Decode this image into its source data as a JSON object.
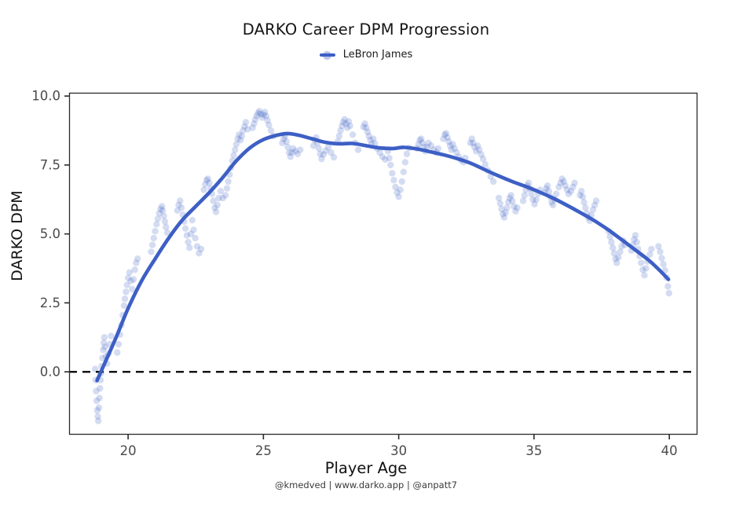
{
  "title": "DARKO Career DPM Progression",
  "legend": {
    "label": "LeBron James"
  },
  "footer": "@kmedved | www.darko.app | @anpatt7",
  "colors": {
    "line_blue": "#3d5fc5",
    "point_blue": "#3d5fc5",
    "zero_line": "#0c0c0c",
    "spine": "#2a2a2a",
    "tick_label": "#4a4a4a"
  },
  "chart_data": {
    "type": "scatter",
    "title": "DARKO Career DPM Progression",
    "xlabel": "Player Age",
    "ylabel": "DARKO DPM",
    "legend_entries": [
      "LeBron James"
    ],
    "grid": false,
    "legend_position": "top-center",
    "xlim": [
      17.82,
      41.04
    ],
    "ylim": [
      -2.28,
      10.12
    ],
    "x_ticks": [
      20,
      25,
      30,
      35,
      40
    ],
    "y_ticks": [
      0.0,
      2.5,
      5.0,
      7.5,
      10.0
    ],
    "zero_reference_line": 0.0,
    "trend_line": [
      [
        18.85,
        -0.32
      ],
      [
        19.2,
        0.45
      ],
      [
        19.6,
        1.35
      ],
      [
        20.0,
        2.3
      ],
      [
        20.5,
        3.3
      ],
      [
        21.0,
        4.1
      ],
      [
        21.5,
        4.85
      ],
      [
        22.0,
        5.5
      ],
      [
        22.5,
        6.0
      ],
      [
        23.0,
        6.5
      ],
      [
        23.5,
        7.05
      ],
      [
        24.0,
        7.65
      ],
      [
        24.5,
        8.12
      ],
      [
        25.0,
        8.42
      ],
      [
        25.5,
        8.58
      ],
      [
        25.9,
        8.64
      ],
      [
        26.3,
        8.58
      ],
      [
        26.8,
        8.45
      ],
      [
        27.3,
        8.32
      ],
      [
        27.8,
        8.27
      ],
      [
        28.3,
        8.28
      ],
      [
        28.8,
        8.2
      ],
      [
        29.3,
        8.12
      ],
      [
        29.8,
        8.1
      ],
      [
        30.2,
        8.14
      ],
      [
        30.7,
        8.08
      ],
      [
        31.2,
        7.97
      ],
      [
        31.7,
        7.86
      ],
      [
        32.2,
        7.72
      ],
      [
        32.7,
        7.55
      ],
      [
        33.2,
        7.32
      ],
      [
        33.7,
        7.1
      ],
      [
        34.2,
        6.9
      ],
      [
        34.7,
        6.72
      ],
      [
        35.2,
        6.52
      ],
      [
        35.7,
        6.3
      ],
      [
        36.2,
        6.05
      ],
      [
        36.7,
        5.78
      ],
      [
        37.2,
        5.5
      ],
      [
        37.7,
        5.18
      ],
      [
        38.2,
        4.82
      ],
      [
        38.7,
        4.45
      ],
      [
        39.2,
        4.08
      ],
      [
        39.6,
        3.72
      ],
      [
        39.97,
        3.35
      ]
    ],
    "points": [
      [
        18.78,
        0.1
      ],
      [
        18.8,
        -0.3
      ],
      [
        18.82,
        -0.7
      ],
      [
        18.84,
        -1.05
      ],
      [
        18.86,
        -1.4
      ],
      [
        18.88,
        -1.62
      ],
      [
        18.9,
        -1.78
      ],
      [
        18.92,
        -1.3
      ],
      [
        18.94,
        -0.95
      ],
      [
        18.96,
        -0.6
      ],
      [
        18.98,
        -0.3
      ],
      [
        19.0,
        -0.05
      ],
      [
        19.02,
        0.2
      ],
      [
        19.05,
        0.5
      ],
      [
        19.08,
        0.8
      ],
      [
        19.1,
        1.05
      ],
      [
        19.12,
        1.25
      ],
      [
        19.15,
        0.9
      ],
      [
        19.18,
        0.55
      ],
      [
        19.22,
        0.3
      ],
      [
        19.27,
        0.65
      ],
      [
        19.32,
        1.0
      ],
      [
        19.37,
        1.3
      ],
      [
        19.6,
        0.7
      ],
      [
        19.65,
        1.0
      ],
      [
        19.7,
        1.35
      ],
      [
        19.75,
        1.7
      ],
      [
        19.8,
        2.05
      ],
      [
        19.85,
        2.4
      ],
      [
        19.88,
        2.65
      ],
      [
        19.92,
        2.9
      ],
      [
        19.96,
        3.15
      ],
      [
        20.0,
        3.4
      ],
      [
        20.05,
        3.6
      ],
      [
        20.1,
        3.3
      ],
      [
        20.15,
        3.0
      ],
      [
        20.2,
        3.35
      ],
      [
        20.25,
        3.7
      ],
      [
        20.3,
        3.95
      ],
      [
        20.35,
        4.1
      ],
      [
        20.85,
        4.35
      ],
      [
        20.9,
        4.6
      ],
      [
        20.95,
        4.85
      ],
      [
        21.0,
        5.1
      ],
      [
        21.05,
        5.35
      ],
      [
        21.1,
        5.55
      ],
      [
        21.15,
        5.75
      ],
      [
        21.2,
        5.9
      ],
      [
        21.25,
        6.0
      ],
      [
        21.28,
        5.85
      ],
      [
        21.32,
        5.65
      ],
      [
        21.36,
        5.45
      ],
      [
        21.4,
        5.25
      ],
      [
        21.45,
        5.05
      ],
      [
        21.82,
        5.85
      ],
      [
        21.87,
        6.05
      ],
      [
        21.92,
        6.2
      ],
      [
        21.97,
        5.95
      ],
      [
        22.02,
        5.7
      ],
      [
        22.07,
        5.45
      ],
      [
        22.12,
        5.2
      ],
      [
        22.17,
        4.95
      ],
      [
        22.22,
        4.7
      ],
      [
        22.27,
        4.5
      ],
      [
        22.32,
        5.0
      ],
      [
        22.37,
        5.5
      ],
      [
        22.42,
        5.15
      ],
      [
        22.48,
        4.85
      ],
      [
        22.55,
        4.55
      ],
      [
        22.62,
        4.3
      ],
      [
        22.7,
        4.45
      ],
      [
        22.8,
        6.6
      ],
      [
        22.85,
        6.8
      ],
      [
        22.9,
        6.95
      ],
      [
        22.95,
        7.0
      ],
      [
        23.0,
        6.85
      ],
      [
        23.05,
        6.65
      ],
      [
        23.1,
        6.45
      ],
      [
        23.15,
        6.2
      ],
      [
        23.2,
        5.95
      ],
      [
        23.25,
        5.8
      ],
      [
        23.3,
        6.05
      ],
      [
        23.35,
        6.3
      ],
      [
        23.42,
        6.55
      ],
      [
        23.5,
        6.3
      ],
      [
        23.6,
        6.4
      ],
      [
        23.65,
        6.65
      ],
      [
        23.7,
        6.9
      ],
      [
        23.75,
        7.15
      ],
      [
        23.8,
        7.4
      ],
      [
        23.85,
        7.65
      ],
      [
        23.9,
        7.85
      ],
      [
        23.95,
        8.05
      ],
      [
        24.0,
        8.25
      ],
      [
        24.05,
        8.45
      ],
      [
        24.1,
        8.6
      ],
      [
        24.15,
        8.4
      ],
      [
        24.2,
        8.55
      ],
      [
        24.25,
        8.75
      ],
      [
        24.3,
        8.9
      ],
      [
        24.35,
        9.05
      ],
      [
        24.42,
        8.8
      ],
      [
        24.6,
        8.85
      ],
      [
        24.65,
        9.0
      ],
      [
        24.7,
        9.15
      ],
      [
        24.75,
        9.28
      ],
      [
        24.8,
        9.38
      ],
      [
        24.85,
        9.45
      ],
      [
        24.9,
        9.35
      ],
      [
        24.95,
        9.22
      ],
      [
        25.0,
        9.32
      ],
      [
        25.05,
        9.42
      ],
      [
        25.1,
        9.28
      ],
      [
        25.15,
        9.12
      ],
      [
        25.2,
        8.95
      ],
      [
        25.28,
        8.75
      ],
      [
        25.36,
        8.55
      ],
      [
        25.7,
        8.3
      ],
      [
        25.75,
        8.45
      ],
      [
        25.8,
        8.55
      ],
      [
        25.85,
        8.35
      ],
      [
        25.9,
        8.15
      ],
      [
        25.95,
        7.95
      ],
      [
        26.0,
        7.8
      ],
      [
        26.05,
        7.95
      ],
      [
        26.1,
        8.1
      ],
      [
        26.18,
        8.0
      ],
      [
        26.27,
        7.9
      ],
      [
        26.36,
        8.05
      ],
      [
        26.85,
        8.2
      ],
      [
        26.9,
        8.4
      ],
      [
        26.95,
        8.5
      ],
      [
        27.0,
        8.3
      ],
      [
        27.05,
        8.1
      ],
      [
        27.1,
        7.9
      ],
      [
        27.15,
        7.72
      ],
      [
        27.22,
        7.88
      ],
      [
        27.3,
        8.02
      ],
      [
        27.4,
        8.15
      ],
      [
        27.5,
        7.95
      ],
      [
        27.6,
        7.78
      ],
      [
        27.75,
        8.35
      ],
      [
        27.8,
        8.55
      ],
      [
        27.85,
        8.75
      ],
      [
        27.9,
        8.92
      ],
      [
        27.95,
        9.05
      ],
      [
        28.0,
        9.15
      ],
      [
        28.05,
        9.0
      ],
      [
        28.1,
        8.85
      ],
      [
        28.15,
        9.08
      ],
      [
        28.2,
        8.92
      ],
      [
        28.3,
        8.6
      ],
      [
        28.4,
        8.3
      ],
      [
        28.5,
        8.05
      ],
      [
        28.7,
        8.88
      ],
      [
        28.75,
        9.0
      ],
      [
        28.8,
        8.85
      ],
      [
        28.85,
        8.7
      ],
      [
        28.9,
        8.55
      ],
      [
        28.95,
        8.4
      ],
      [
        29.0,
        8.25
      ],
      [
        29.06,
        8.45
      ],
      [
        29.12,
        8.28
      ],
      [
        29.2,
        8.1
      ],
      [
        29.3,
        7.95
      ],
      [
        29.4,
        7.8
      ],
      [
        29.5,
        7.7
      ],
      [
        29.6,
        8.0
      ],
      [
        29.65,
        7.75
      ],
      [
        29.7,
        7.5
      ],
      [
        29.76,
        7.2
      ],
      [
        29.82,
        6.95
      ],
      [
        29.88,
        6.7
      ],
      [
        29.94,
        6.5
      ],
      [
        30.0,
        6.35
      ],
      [
        30.06,
        6.6
      ],
      [
        30.12,
        6.9
      ],
      [
        30.18,
        7.25
      ],
      [
        30.24,
        7.6
      ],
      [
        30.3,
        7.9
      ],
      [
        30.38,
        8.12
      ],
      [
        30.68,
        8.1
      ],
      [
        30.73,
        8.25
      ],
      [
        30.78,
        8.4
      ],
      [
        30.83,
        8.45
      ],
      [
        30.88,
        8.3
      ],
      [
        30.93,
        8.15
      ],
      [
        30.98,
        8.0
      ],
      [
        31.04,
        8.15
      ],
      [
        31.1,
        8.3
      ],
      [
        31.2,
        8.2
      ],
      [
        31.3,
        8.05
      ],
      [
        31.4,
        7.95
      ],
      [
        31.46,
        8.1
      ],
      [
        31.65,
        8.45
      ],
      [
        31.7,
        8.6
      ],
      [
        31.75,
        8.65
      ],
      [
        31.8,
        8.5
      ],
      [
        31.85,
        8.35
      ],
      [
        31.9,
        8.2
      ],
      [
        31.95,
        8.05
      ],
      [
        32.0,
        8.25
      ],
      [
        32.06,
        8.1
      ],
      [
        32.14,
        7.95
      ],
      [
        32.22,
        7.8
      ],
      [
        32.3,
        7.68
      ],
      [
        32.4,
        7.6
      ],
      [
        32.46,
        7.75
      ],
      [
        32.65,
        8.3
      ],
      [
        32.7,
        8.45
      ],
      [
        32.75,
        8.3
      ],
      [
        32.8,
        8.15
      ],
      [
        32.86,
        8.0
      ],
      [
        32.92,
        8.2
      ],
      [
        32.98,
        8.05
      ],
      [
        33.05,
        7.88
      ],
      [
        33.12,
        7.72
      ],
      [
        33.2,
        7.52
      ],
      [
        33.3,
        7.3
      ],
      [
        33.4,
        7.08
      ],
      [
        33.5,
        6.9
      ],
      [
        33.7,
        6.3
      ],
      [
        33.75,
        6.1
      ],
      [
        33.8,
        5.9
      ],
      [
        33.85,
        5.72
      ],
      [
        33.9,
        5.6
      ],
      [
        33.95,
        5.78
      ],
      [
        34.0,
        5.95
      ],
      [
        34.05,
        6.15
      ],
      [
        34.1,
        6.3
      ],
      [
        34.15,
        6.4
      ],
      [
        34.2,
        6.2
      ],
      [
        34.26,
        6.0
      ],
      [
        34.32,
        5.82
      ],
      [
        34.38,
        5.95
      ],
      [
        34.6,
        6.2
      ],
      [
        34.65,
        6.4
      ],
      [
        34.7,
        6.6
      ],
      [
        34.75,
        6.75
      ],
      [
        34.8,
        6.85
      ],
      [
        34.85,
        6.65
      ],
      [
        34.9,
        6.45
      ],
      [
        34.96,
        6.25
      ],
      [
        35.02,
        6.08
      ],
      [
        35.08,
        6.25
      ],
      [
        35.15,
        6.45
      ],
      [
        35.22,
        6.6
      ],
      [
        35.4,
        6.5
      ],
      [
        35.45,
        6.65
      ],
      [
        35.5,
        6.75
      ],
      [
        35.55,
        6.55
      ],
      [
        35.6,
        6.35
      ],
      [
        35.65,
        6.15
      ],
      [
        35.7,
        6.05
      ],
      [
        35.76,
        6.25
      ],
      [
        35.82,
        6.45
      ],
      [
        35.92,
        6.7
      ],
      [
        35.98,
        6.85
      ],
      [
        36.04,
        7.0
      ],
      [
        36.1,
        6.9
      ],
      [
        36.16,
        6.75
      ],
      [
        36.22,
        6.6
      ],
      [
        36.28,
        6.45
      ],
      [
        36.36,
        6.55
      ],
      [
        36.44,
        6.7
      ],
      [
        36.5,
        6.85
      ],
      [
        36.7,
        6.4
      ],
      [
        36.75,
        6.55
      ],
      [
        36.8,
        6.35
      ],
      [
        36.85,
        6.15
      ],
      [
        36.9,
        5.95
      ],
      [
        36.95,
        5.75
      ],
      [
        37.0,
        5.6
      ],
      [
        37.06,
        5.48
      ],
      [
        37.12,
        5.68
      ],
      [
        37.18,
        5.88
      ],
      [
        37.24,
        6.05
      ],
      [
        37.3,
        6.2
      ],
      [
        37.76,
        5.1
      ],
      [
        37.81,
        4.9
      ],
      [
        37.86,
        4.7
      ],
      [
        37.91,
        4.5
      ],
      [
        37.96,
        4.3
      ],
      [
        38.01,
        4.1
      ],
      [
        38.06,
        3.95
      ],
      [
        38.12,
        4.15
      ],
      [
        38.18,
        4.35
      ],
      [
        38.24,
        4.55
      ],
      [
        38.3,
        4.75
      ],
      [
        38.36,
        4.6
      ],
      [
        38.6,
        4.4
      ],
      [
        38.65,
        4.6
      ],
      [
        38.7,
        4.8
      ],
      [
        38.75,
        4.95
      ],
      [
        38.8,
        4.7
      ],
      [
        38.85,
        4.45
      ],
      [
        38.9,
        4.2
      ],
      [
        38.96,
        3.95
      ],
      [
        39.02,
        3.7
      ],
      [
        39.08,
        3.5
      ],
      [
        39.14,
        3.75
      ],
      [
        39.2,
        4.0
      ],
      [
        39.28,
        4.25
      ],
      [
        39.34,
        4.45
      ],
      [
        39.6,
        4.55
      ],
      [
        39.66,
        4.35
      ],
      [
        39.72,
        4.12
      ],
      [
        39.78,
        3.9
      ],
      [
        39.84,
        3.68
      ],
      [
        39.9,
        3.42
      ],
      [
        39.95,
        3.1
      ],
      [
        39.99,
        2.85
      ]
    ]
  }
}
